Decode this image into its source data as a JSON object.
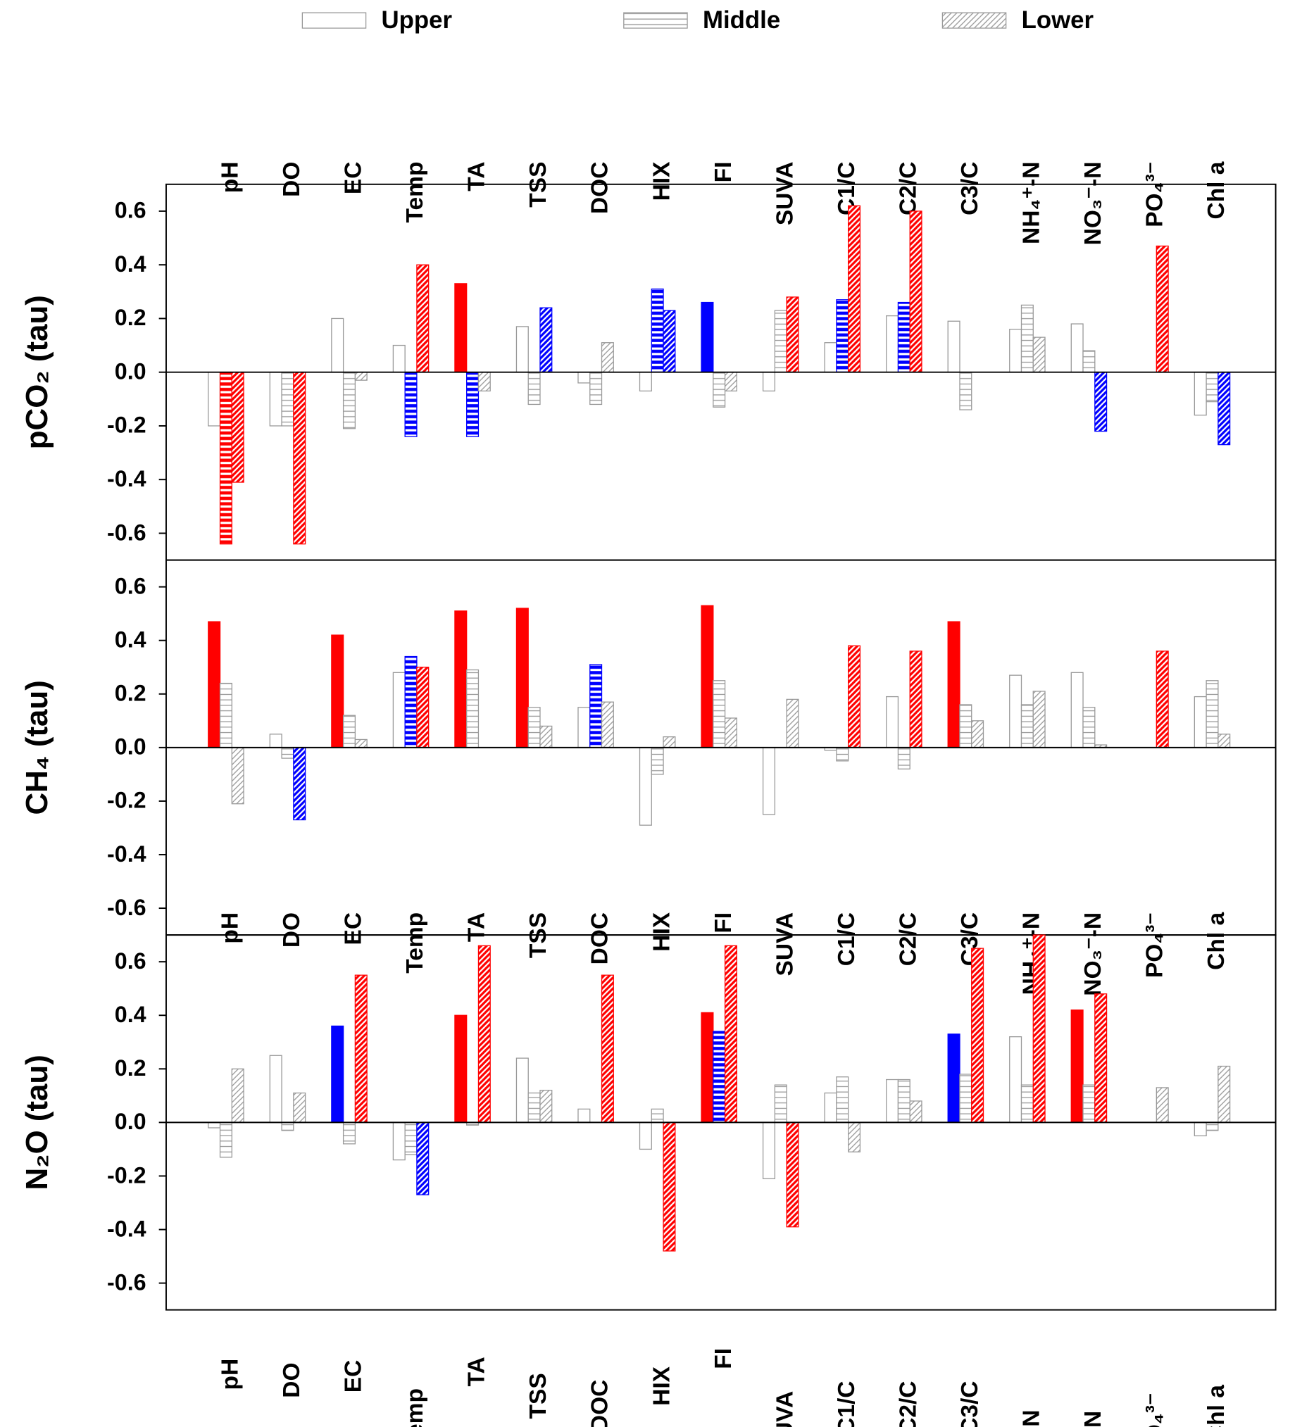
{
  "chart_data": [
    {
      "type": "bar",
      "y_label": "pCO₂ (tau)",
      "categories": [
        "pH",
        "DO",
        "EC",
        "Temp",
        "TA",
        "TSS",
        "DOC",
        "HIX",
        "FI",
        "SUVA",
        "C1/C",
        "C2/C",
        "C3/C",
        "NH₄⁺-N",
        "NO₃⁻-N",
        "PO₄³⁻",
        "Chl a"
      ],
      "ylim": [
        -0.7,
        0.7
      ],
      "yticks": [
        -0.6,
        -0.4,
        -0.2,
        {
          "value": 0,
          "label": "0.0"
        },
        0.2,
        0.4,
        0.6
      ],
      "series": [
        {
          "name": "Upper",
          "hatch": "none",
          "color": "#999999",
          "values": [
            -0.2,
            -0.2,
            0.2,
            0.1,
            0.33,
            0.17,
            -0.04,
            -0.07,
            0.26,
            -0.07,
            0.11,
            0.21,
            0.19,
            0.16,
            0.18,
            null,
            -0.16
          ],
          "colors": [
            "#999999",
            "#999999",
            "#999999",
            "#999999",
            "#ff0000",
            "#999999",
            "#999999",
            "#999999",
            "#0000ff",
            "#999999",
            "#999999",
            "#999999",
            "#999999",
            "#999999",
            "#999999",
            "#999999",
            "#999999"
          ]
        },
        {
          "name": "Middle",
          "hatch": "horizontal",
          "color": "#999999",
          "values": [
            -0.64,
            -0.2,
            -0.21,
            -0.24,
            -0.24,
            -0.12,
            -0.12,
            0.31,
            -0.13,
            0.23,
            0.27,
            0.26,
            -0.14,
            0.25,
            0.08,
            null,
            -0.11
          ],
          "colors": [
            "#ff0000",
            "#999999",
            "#999999",
            "#0000ff",
            "#0000ff",
            "#999999",
            "#999999",
            "#0000ff",
            "#999999",
            "#999999",
            "#0000ff",
            "#0000ff",
            "#999999",
            "#999999",
            "#999999",
            "#999999",
            "#999999"
          ]
        },
        {
          "name": "Lower",
          "hatch": "diagonal",
          "color": "#999999",
          "values": [
            -0.41,
            -0.64,
            -0.03,
            0.4,
            -0.07,
            0.24,
            0.11,
            0.23,
            -0.07,
            0.28,
            0.62,
            0.6,
            0.0,
            0.13,
            -0.22,
            0.47,
            -0.27
          ],
          "colors": [
            "#ff0000",
            "#ff0000",
            "#999999",
            "#ff0000",
            "#999999",
            "#0000ff",
            "#999999",
            "#0000ff",
            "#999999",
            "#ff0000",
            "#ff0000",
            "#ff0000",
            "#999999",
            "#999999",
            "#0000ff",
            "#ff0000",
            "#0000ff"
          ]
        }
      ]
    },
    {
      "type": "bar",
      "y_label": "CH₄ (tau)",
      "categories": [
        "pH",
        "DO",
        "EC",
        "Temp",
        "TA",
        "TSS",
        "DOC",
        "HIX",
        "FI",
        "SUVA",
        "C1/C",
        "C2/C",
        "C3/C",
        "NH₄⁺-N",
        "NO₃⁻-N",
        "PO₄³⁻",
        "Chl a"
      ],
      "ylim": [
        -0.7,
        0.7
      ],
      "yticks": [
        -0.6,
        -0.4,
        -0.2,
        {
          "value": 0,
          "label": "0.0"
        },
        0.2,
        0.4,
        0.6
      ],
      "series": [
        {
          "name": "Upper",
          "hatch": "none",
          "color": "#999999",
          "values": [
            0.47,
            0.05,
            0.42,
            0.28,
            0.51,
            0.52,
            0.15,
            -0.29,
            0.53,
            -0.25,
            -0.01,
            0.19,
            0.47,
            0.27,
            0.28,
            null,
            0.19
          ],
          "colors": [
            "#ff0000",
            "#999999",
            "#ff0000",
            "#999999",
            "#ff0000",
            "#ff0000",
            "#999999",
            "#999999",
            "#ff0000",
            "#999999",
            "#999999",
            "#999999",
            "#ff0000",
            "#999999",
            "#999999",
            "#999999",
            "#999999"
          ]
        },
        {
          "name": "Middle",
          "hatch": "horizontal",
          "color": "#999999",
          "values": [
            0.24,
            -0.04,
            0.12,
            0.34,
            0.29,
            0.15,
            0.31,
            -0.1,
            0.25,
            0.0,
            -0.05,
            -0.08,
            0.16,
            0.16,
            0.15,
            null,
            0.25
          ],
          "colors": [
            "#999999",
            "#999999",
            "#999999",
            "#0000ff",
            "#999999",
            "#999999",
            "#0000ff",
            "#999999",
            "#999999",
            "#999999",
            "#999999",
            "#999999",
            "#999999",
            "#999999",
            "#999999",
            "#999999",
            "#999999"
          ]
        },
        {
          "name": "Lower",
          "hatch": "diagonal",
          "color": "#999999",
          "values": [
            -0.21,
            -0.27,
            0.03,
            0.3,
            0.0,
            0.08,
            0.17,
            0.04,
            0.11,
            0.18,
            0.38,
            0.36,
            0.1,
            0.21,
            0.01,
            0.36,
            0.05
          ],
          "colors": [
            "#999999",
            "#0000ff",
            "#999999",
            "#ff0000",
            "#999999",
            "#999999",
            "#999999",
            "#999999",
            "#999999",
            "#999999",
            "#ff0000",
            "#ff0000",
            "#999999",
            "#999999",
            "#999999",
            "#ff0000",
            "#999999"
          ]
        }
      ]
    },
    {
      "type": "bar",
      "y_label": "N₂O (tau)",
      "categories": [
        "pH",
        "DO",
        "EC",
        "Temp",
        "TA",
        "TSS",
        "DOC",
        "HIX",
        "FI",
        "SUVA",
        "C1/C",
        "C2/C",
        "C3/C",
        "NH₄⁺-N",
        "NO₃⁻-N",
        "PO₄³⁻",
        "Chl a"
      ],
      "ylim": [
        -0.7,
        0.7
      ],
      "yticks": [
        -0.6,
        -0.4,
        -0.2,
        {
          "value": 0,
          "label": "0.0"
        },
        0.2,
        0.4,
        0.6
      ],
      "series": [
        {
          "name": "Upper",
          "hatch": "none",
          "color": "#999999",
          "values": [
            -0.02,
            0.25,
            0.36,
            -0.14,
            0.4,
            0.24,
            0.05,
            -0.1,
            0.41,
            -0.21,
            0.11,
            0.16,
            0.33,
            0.32,
            0.42,
            null,
            -0.05
          ],
          "colors": [
            "#999999",
            "#999999",
            "#0000ff",
            "#999999",
            "#ff0000",
            "#999999",
            "#999999",
            "#999999",
            "#ff0000",
            "#999999",
            "#999999",
            "#999999",
            "#0000ff",
            "#999999",
            "#ff0000",
            "#999999",
            "#999999"
          ]
        },
        {
          "name": "Middle",
          "hatch": "horizontal",
          "color": "#999999",
          "values": [
            -0.13,
            -0.03,
            -0.08,
            -0.12,
            -0.01,
            0.11,
            0.0,
            0.05,
            0.34,
            0.14,
            0.17,
            0.16,
            0.18,
            0.14,
            0.14,
            null,
            -0.03
          ],
          "colors": [
            "#999999",
            "#999999",
            "#999999",
            "#999999",
            "#999999",
            "#999999",
            "#999999",
            "#999999",
            "#0000ff",
            "#999999",
            "#999999",
            "#999999",
            "#999999",
            "#999999",
            "#999999",
            "#999999",
            "#999999"
          ]
        },
        {
          "name": "Lower",
          "hatch": "diagonal",
          "color": "#999999",
          "values": [
            0.2,
            0.11,
            0.55,
            -0.27,
            0.66,
            0.12,
            0.55,
            -0.48,
            0.66,
            -0.39,
            -0.11,
            0.08,
            0.65,
            0.7,
            0.48,
            0.13,
            0.21
          ],
          "colors": [
            "#999999",
            "#999999",
            "#ff0000",
            "#0000ff",
            "#ff0000",
            "#999999",
            "#ff0000",
            "#ff0000",
            "#ff0000",
            "#ff0000",
            "#999999",
            "#999999",
            "#ff0000",
            "#ff0000",
            "#ff0000",
            "#999999",
            "#999999"
          ]
        }
      ]
    }
  ]
}
